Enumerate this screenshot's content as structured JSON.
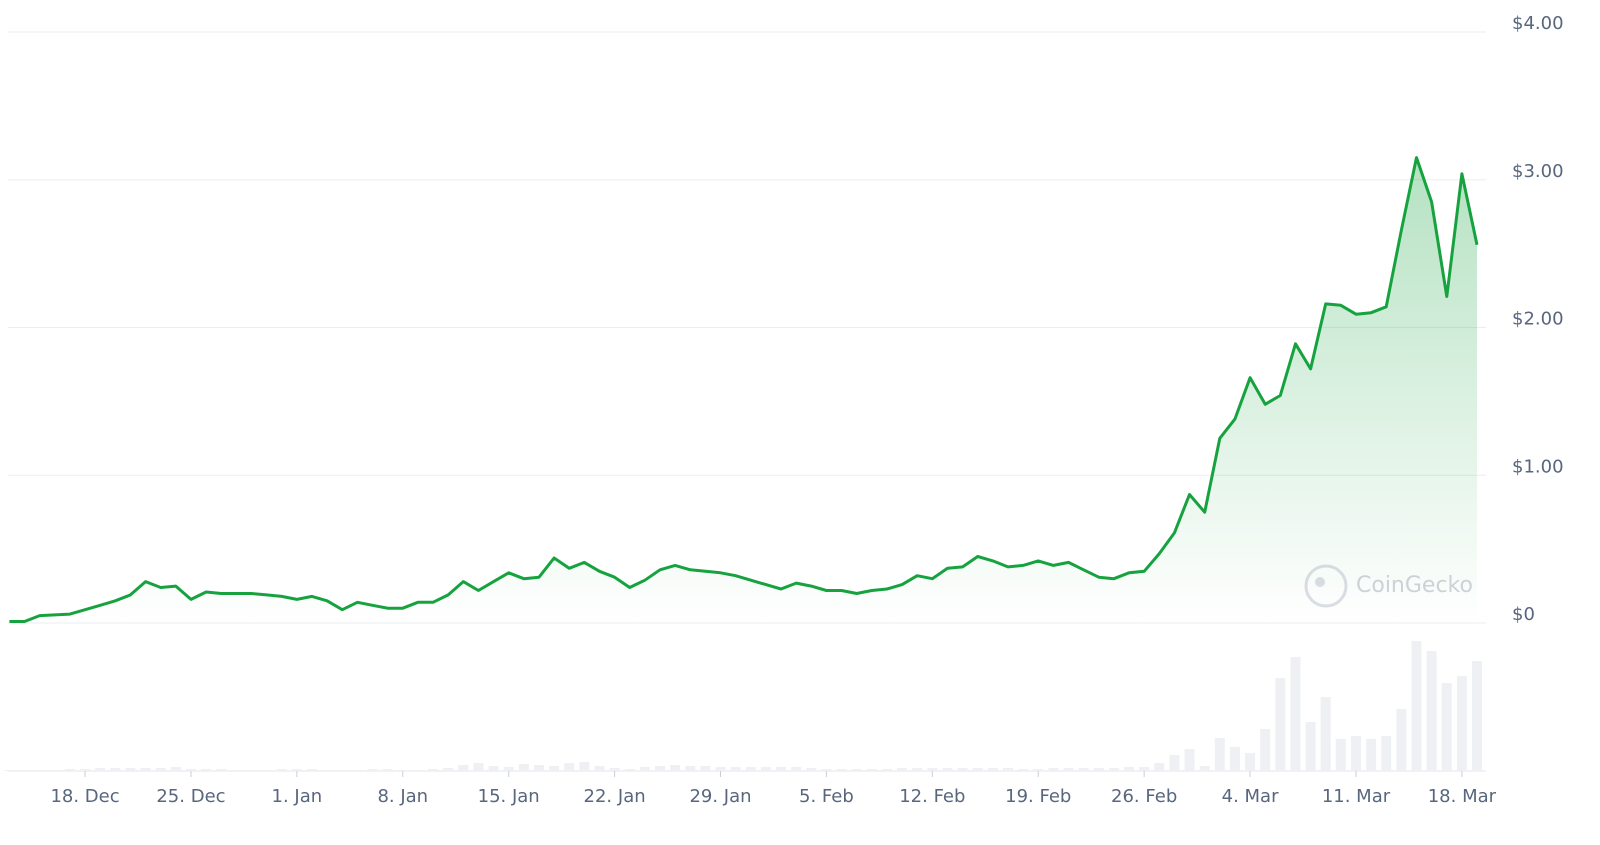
{
  "chart_data": {
    "type": "line",
    "x": [
      "13. Dec",
      "14. Dec",
      "15. Dec",
      "16. Dec",
      "17. Dec",
      "18. Dec",
      "19. Dec",
      "20. Dec",
      "21. Dec",
      "22. Dec",
      "23. Dec",
      "24. Dec",
      "25. Dec",
      "26. Dec",
      "27. Dec",
      "28. Dec",
      "29. Dec",
      "30. Dec",
      "31. Dec",
      "1. Jan",
      "2. Jan",
      "3. Jan",
      "4. Jan",
      "5. Jan",
      "6. Jan",
      "7. Jan",
      "8. Jan",
      "9. Jan",
      "10. Jan",
      "11. Jan",
      "12. Jan",
      "13. Jan",
      "14. Jan",
      "15. Jan",
      "16. Jan",
      "17. Jan",
      "18. Jan",
      "19. Jan",
      "20. Jan",
      "21. Jan",
      "22. Jan",
      "23. Jan",
      "24. Jan",
      "25. Jan",
      "26. Jan",
      "27. Jan",
      "28. Jan",
      "29. Jan",
      "30. Jan",
      "31. Jan",
      "1. Feb",
      "2. Feb",
      "3. Feb",
      "4. Feb",
      "5. Feb",
      "6. Feb",
      "7. Feb",
      "8. Feb",
      "9. Feb",
      "10. Feb",
      "11. Feb",
      "12. Feb",
      "13. Feb",
      "14. Feb",
      "15. Feb",
      "16. Feb",
      "17. Feb",
      "18. Feb",
      "19. Feb",
      "20. Feb",
      "21. Feb",
      "22. Feb",
      "23. Feb",
      "24. Feb",
      "25. Feb",
      "26. Feb",
      "27. Feb",
      "28. Feb",
      "29. Feb",
      "1. Mar",
      "2. Mar",
      "3. Mar",
      "4. Mar",
      "5. Mar",
      "6. Mar",
      "7. Mar",
      "8. Mar",
      "9. Mar",
      "10. Mar",
      "11. Mar",
      "12. Mar",
      "13. Mar",
      "14. Mar",
      "15. Mar",
      "16. Mar",
      "17. Mar",
      "18. Mar",
      "19. Mar"
    ],
    "series": [
      {
        "color": "#16a33f",
        "values": [
          0.01,
          0.01,
          0.05,
          0.055,
          0.06,
          0.09,
          0.12,
          0.15,
          0.19,
          0.28,
          0.24,
          0.25,
          0.16,
          0.21,
          0.2,
          0.2,
          0.2,
          0.19,
          0.18,
          0.16,
          0.18,
          0.15,
          0.09,
          0.14,
          0.12,
          0.1,
          0.1,
          0.14,
          0.14,
          0.19,
          0.28,
          0.22,
          0.28,
          0.34,
          0.3,
          0.31,
          0.44,
          0.37,
          0.41,
          0.35,
          0.31,
          0.24,
          0.29,
          0.36,
          0.39,
          0.36,
          0.35,
          0.34,
          0.32,
          0.29,
          0.26,
          0.23,
          0.27,
          0.25,
          0.22,
          0.22,
          0.2,
          0.22,
          0.23,
          0.26,
          0.32,
          0.3,
          0.37,
          0.38,
          0.45,
          0.42,
          0.38,
          0.39,
          0.42,
          0.39,
          0.41,
          0.36,
          0.31,
          0.3,
          0.34,
          0.35,
          0.47,
          0.61,
          0.87,
          0.75,
          1.25,
          1.38,
          1.66,
          1.48,
          1.54,
          1.89,
          1.72,
          2.16,
          2.15,
          2.09,
          2.1,
          2.14,
          2.66,
          3.15,
          2.85,
          2.21,
          3.04,
          2.56
        ]
      }
    ],
    "volume": {
      "color": "#eef0f4",
      "values": [
        1,
        1,
        1,
        1,
        2,
        2,
        3,
        3,
        3,
        3,
        3,
        4,
        2,
        2,
        2,
        1,
        1,
        1,
        2,
        2,
        2,
        1,
        1,
        1,
        2,
        2,
        1,
        1,
        2,
        3,
        6,
        8,
        5,
        4,
        7,
        6,
        5,
        8,
        9,
        5,
        3,
        2,
        4,
        5,
        6,
        5,
        5,
        4,
        4,
        4,
        4,
        4,
        4,
        3,
        2,
        2,
        2,
        2,
        2,
        3,
        3,
        3,
        3,
        3,
        3,
        3,
        3,
        2,
        2,
        3,
        3,
        3,
        3,
        3,
        4,
        4,
        8,
        16,
        22,
        5,
        33,
        24,
        18,
        42,
        93,
        114,
        49,
        74,
        32,
        35,
        32,
        35,
        62,
        130,
        120,
        88,
        95,
        110
      ]
    },
    "ylim": [
      0,
      4
    ],
    "yticks": [
      {
        "value": 0,
        "label": "$0"
      },
      {
        "value": 1,
        "label": "$1.00"
      },
      {
        "value": 2,
        "label": "$2.00"
      },
      {
        "value": 3,
        "label": "$3.00"
      },
      {
        "value": 4,
        "label": "$4.00"
      }
    ],
    "xticks": [
      "18. Dec",
      "25. Dec",
      "1. Jan",
      "8. Jan",
      "15. Jan",
      "22. Jan",
      "29. Jan",
      "5. Feb",
      "12. Feb",
      "19. Feb",
      "26. Feb",
      "4. Mar",
      "11. Mar",
      "18. Mar"
    ],
    "grid": true,
    "watermark": "CoinGecko"
  }
}
